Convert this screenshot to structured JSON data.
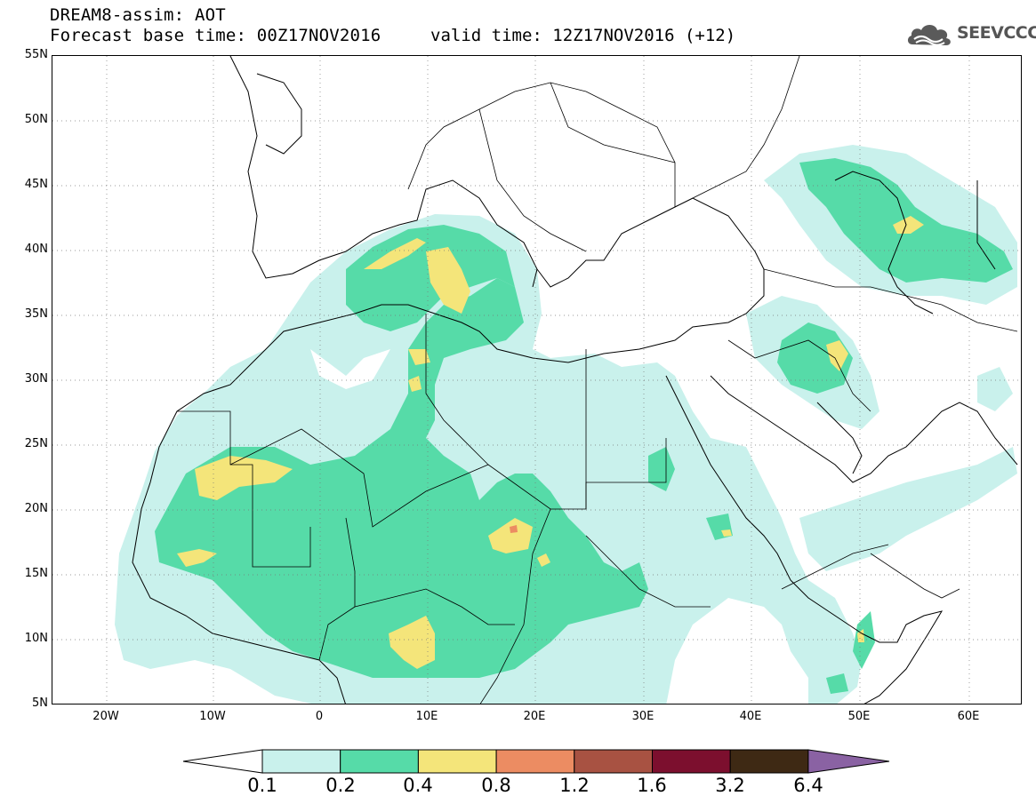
{
  "header": {
    "line1": "DREAM8-assim: AOT",
    "line2": "Forecast base time: 00Z17NOV2016",
    "valid": "valid time: 12Z17NOV2016 (+12)"
  },
  "logo": {
    "text": "SEEVCCC",
    "icon": "cloud-logo-icon"
  },
  "map": {
    "lat_min": 5,
    "lat_max": 55,
    "lon_min": -25,
    "lon_max": 65,
    "lat_ticks": [
      "55N",
      "50N",
      "45N",
      "40N",
      "35N",
      "30N",
      "25N",
      "20N",
      "15N",
      "10N",
      "5N"
    ],
    "lon_ticks": [
      "20W",
      "10W",
      "0",
      "10E",
      "20E",
      "30E",
      "40E",
      "50E",
      "60E"
    ],
    "grid": "dotted"
  },
  "legend": {
    "levels": [
      "0.1",
      "0.2",
      "0.4",
      "0.8",
      "1.2",
      "1.6",
      "3.2",
      "6.4"
    ],
    "colors": [
      "#c9f1ec",
      "#56dba8",
      "#f4e57a",
      "#ec8c62",
      "#a85242",
      "#7c0f2e",
      "#3e2914",
      "#8a62a3"
    ],
    "below_color": "#ffffff"
  }
}
